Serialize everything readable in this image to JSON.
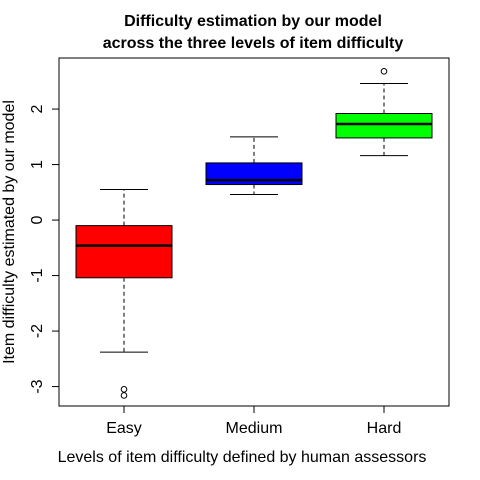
{
  "chart_data": {
    "type": "box",
    "title_line1": "Difficulty estimation by our model",
    "title_line2": "across the three levels of item difficulty",
    "xlabel": "Levels of item difficulty defined by human assessors",
    "ylabel": "Item difficulty estimated by our model",
    "ylim": [
      -3.35,
      2.92
    ],
    "yticks": [
      -3,
      -2,
      -1,
      0,
      1,
      2
    ],
    "ytick_labels": [
      "-3",
      "-2",
      "-1",
      "0",
      "1",
      "2"
    ],
    "grid": false,
    "categories": [
      "Easy",
      "Medium",
      "Hard"
    ],
    "boxes": [
      {
        "category": "Easy",
        "color": "#ff0000",
        "whisker_low": -2.38,
        "q1": -1.04,
        "median": -0.46,
        "q3": -0.1,
        "whisker_high": 0.55,
        "outliers": [
          -3.05,
          -3.16
        ]
      },
      {
        "category": "Medium",
        "color": "#0000ff",
        "whisker_low": 0.46,
        "q1": 0.64,
        "median": 0.72,
        "q3": 1.03,
        "whisker_high": 1.5,
        "outliers": []
      },
      {
        "category": "Hard",
        "color": "#00ff00",
        "whisker_low": 1.16,
        "q1": 1.48,
        "median": 1.73,
        "q3": 1.92,
        "whisker_high": 2.46,
        "outliers": [
          2.68
        ]
      }
    ]
  }
}
